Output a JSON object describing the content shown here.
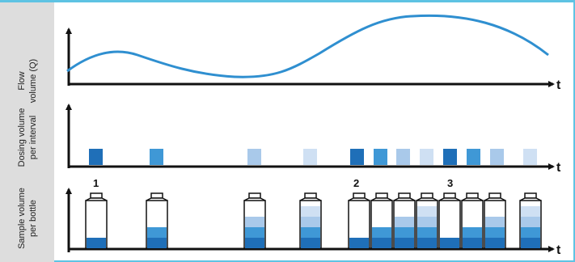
{
  "rows": {
    "flow": {
      "label_line1": "Flow",
      "label_line2": "volume (Q)"
    },
    "dosing": {
      "label_line1": "Dosing volume",
      "label_line2": "per interval"
    },
    "sample": {
      "label_line1": "Sample volume",
      "label_line2": "per bottle"
    }
  },
  "axis_label": "t",
  "markers": [
    "1",
    "2",
    "3"
  ],
  "colors": {
    "dark": "#1f6fb8",
    "mid": "#3f98d6",
    "light": "#a9c9ea",
    "pale": "#cfe0f3",
    "line": "#2f8fd0",
    "sidebar": "#dddddd",
    "frame": "#5ec3e3"
  },
  "chart_data": {
    "type": "diagram",
    "dosing_intervals": [
      "dark",
      "mid",
      "light",
      "pale",
      "dark",
      "mid",
      "light",
      "pale",
      "dark",
      "mid",
      "light",
      "pale"
    ],
    "bottles": [
      [
        "dark"
      ],
      [
        "dark",
        "mid"
      ],
      [
        "dark",
        "mid",
        "light"
      ],
      [
        "dark",
        "mid",
        "light",
        "pale"
      ],
      [
        "dark"
      ],
      [
        "dark",
        "mid"
      ],
      [
        "dark",
        "mid",
        "light"
      ],
      [
        "dark",
        "mid",
        "light",
        "pale"
      ],
      [
        "dark"
      ],
      [
        "dark",
        "mid"
      ],
      [
        "dark",
        "mid",
        "light"
      ],
      [
        "dark",
        "mid",
        "light",
        "pale"
      ]
    ]
  }
}
